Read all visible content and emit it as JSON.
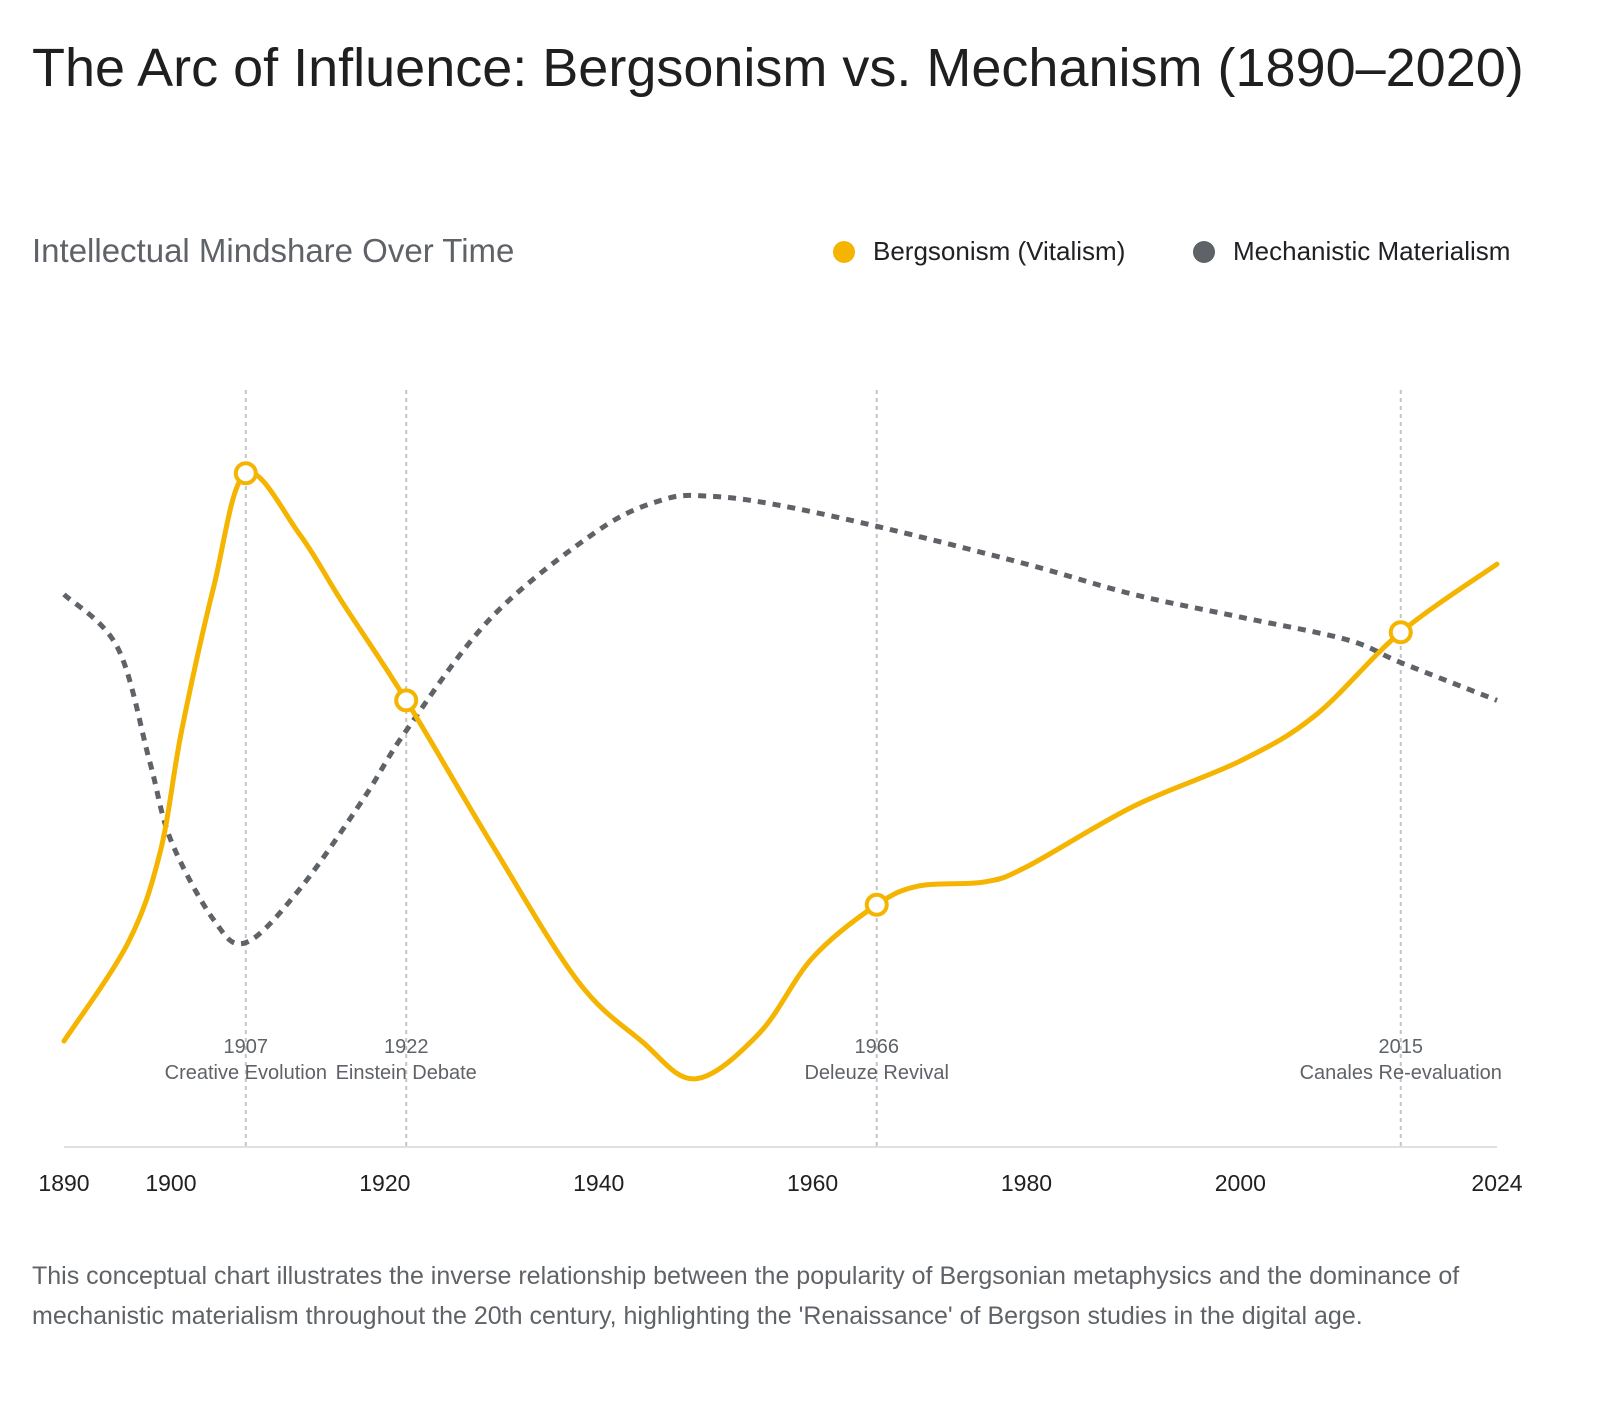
{
  "title": "The Arc of Influence: Bergsonism vs. Mechanism (1890–2020)",
  "subtitle": "Intellectual Mindshare Over Time",
  "caption": "This conceptual chart illustrates the inverse relationship between the popularity of Bergsonian metaphysics and the dominance of mechanistic materialism throughout the 20th century, highlighting the 'Renaissance' of Bergson studies in the digital age.",
  "colors": {
    "bergsonism": "#f4b400",
    "mechanism": "#5f6368"
  },
  "chart_data": {
    "type": "line",
    "title": "Intellectual Mindshare Over Time",
    "xlabel": "",
    "ylabel": "",
    "xlim": [
      1890,
      2024
    ],
    "ylim": [
      0,
      100
    ],
    "x_ticks": [
      1890,
      1900,
      1920,
      1940,
      1960,
      1980,
      2000,
      2024
    ],
    "grid": false,
    "legend_position": "top-right",
    "series": [
      {
        "name": "Bergsonism (Vitalism)",
        "style": "solid",
        "x": [
          1890,
          1896,
          1899,
          1901,
          1904,
          1907,
          1912,
          1916,
          1922,
          1930,
          1938,
          1944,
          1949,
          1955,
          1960,
          1966,
          1970,
          1976,
          1980,
          1990,
          2000,
          2007,
          2015,
          2024
        ],
        "y": [
          14,
          27,
          39,
          55,
          74,
          89,
          81,
          72,
          59,
          40,
          22,
          14,
          9,
          15,
          25,
          32,
          34.5,
          35,
          37,
          45,
          51,
          57,
          68,
          77
        ]
      },
      {
        "name": "Mechanistic Materialism",
        "style": "dotted",
        "x": [
          1890,
          1895,
          1898,
          1900,
          1904,
          1907,
          1912,
          1918,
          1922,
          1930,
          1940,
          1946,
          1950,
          1956,
          1966,
          1980,
          1990,
          2000,
          2010,
          2015,
          2024
        ],
        "y": [
          73,
          66,
          51,
          40.5,
          30,
          27,
          34,
          46,
          55,
          70,
          81.5,
          85.5,
          86,
          85,
          82,
          77,
          73,
          70,
          67,
          64,
          59
        ]
      }
    ],
    "annotations": [
      {
        "year": 1907,
        "label": "1907",
        "text": "Creative Evolution"
      },
      {
        "year": 1922,
        "label": "1922",
        "text": "Einstein Debate"
      },
      {
        "year": 1966,
        "label": "1966",
        "text": "Deleuze Revival"
      },
      {
        "year": 2015,
        "label": "2015",
        "text": "Canales Re-evaluation"
      }
    ]
  }
}
